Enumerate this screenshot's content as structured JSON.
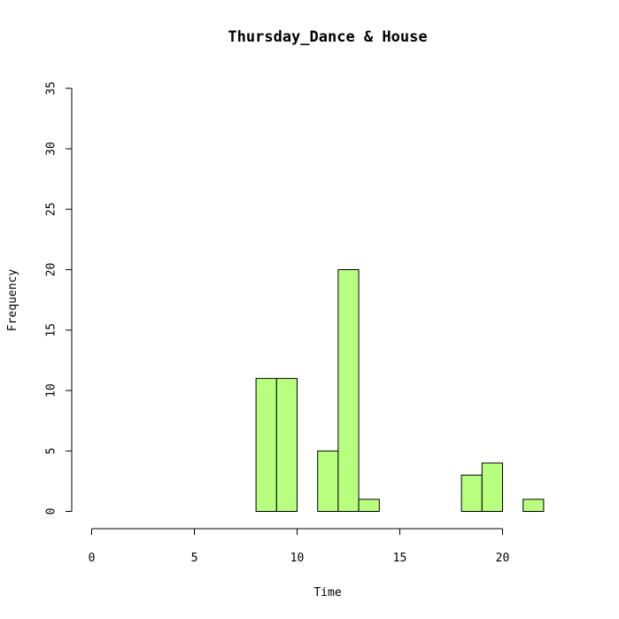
{
  "chart_data": {
    "type": "bar",
    "title": "Thursday_Dance & House",
    "xlabel": "Time",
    "ylabel": "Frequency",
    "xlim": [
      0,
      24
    ],
    "ylim": [
      0,
      35
    ],
    "x_ticks": [
      "0",
      "5",
      "10",
      "15",
      "20"
    ],
    "y_ticks": [
      "0",
      "5",
      "10",
      "15",
      "20",
      "25",
      "30",
      "35"
    ],
    "bar_color": "#b9ff7f",
    "bins": [
      {
        "start": 0,
        "end": 1,
        "value": 0
      },
      {
        "start": 1,
        "end": 2,
        "value": 0
      },
      {
        "start": 2,
        "end": 3,
        "value": 0
      },
      {
        "start": 3,
        "end": 4,
        "value": 0
      },
      {
        "start": 4,
        "end": 5,
        "value": 0
      },
      {
        "start": 5,
        "end": 6,
        "value": 0
      },
      {
        "start": 6,
        "end": 7,
        "value": 0
      },
      {
        "start": 7,
        "end": 8,
        "value": 0
      },
      {
        "start": 8,
        "end": 9,
        "value": 11
      },
      {
        "start": 9,
        "end": 10,
        "value": 11
      },
      {
        "start": 10,
        "end": 11,
        "value": 0
      },
      {
        "start": 11,
        "end": 12,
        "value": 5
      },
      {
        "start": 12,
        "end": 13,
        "value": 20
      },
      {
        "start": 13,
        "end": 14,
        "value": 1
      },
      {
        "start": 14,
        "end": 15,
        "value": 0
      },
      {
        "start": 15,
        "end": 16,
        "value": 0
      },
      {
        "start": 16,
        "end": 17,
        "value": 0
      },
      {
        "start": 17,
        "end": 18,
        "value": 0
      },
      {
        "start": 18,
        "end": 19,
        "value": 3
      },
      {
        "start": 19,
        "end": 20,
        "value": 4
      },
      {
        "start": 20,
        "end": 21,
        "value": 0
      },
      {
        "start": 21,
        "end": 22,
        "value": 1
      },
      {
        "start": 22,
        "end": 23,
        "value": 0
      },
      {
        "start": 23,
        "end": 24,
        "value": 0
      }
    ],
    "grid": false,
    "legend": "none"
  }
}
